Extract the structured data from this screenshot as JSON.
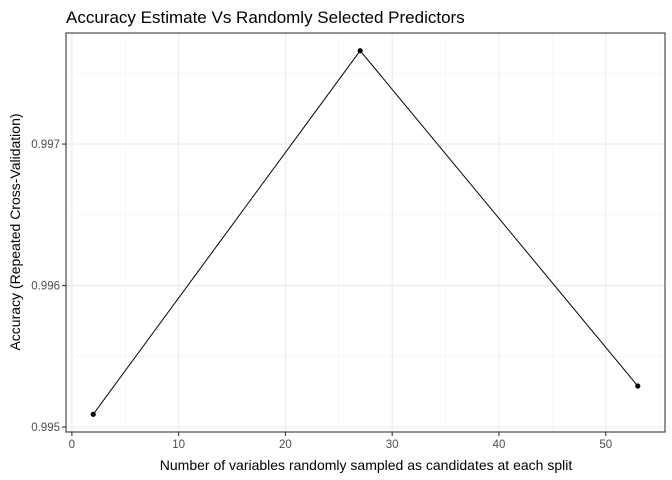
{
  "chart_data": {
    "type": "line",
    "title": "Accuracy Estimate Vs Randomly Selected Predictors",
    "xlabel": "Number of variables randomly sampled as candidates at each split",
    "ylabel": "Accuracy (Repeated Cross-Validation)",
    "x": [
      2,
      27,
      53
    ],
    "y": [
      0.99509,
      0.99766,
      0.99529
    ],
    "xlim": [
      -0.55,
      55.55
    ],
    "ylim": [
      0.994965,
      0.997785
    ],
    "x_ticks": [
      0,
      10,
      20,
      30,
      40,
      50
    ],
    "x_tick_labels": [
      "0",
      "10",
      "20",
      "30",
      "40",
      "50"
    ],
    "y_ticks": [
      0.995,
      0.996,
      0.997
    ],
    "y_tick_labels": [
      "0.995",
      "0.996",
      "0.997"
    ],
    "grid": true,
    "legend": "none",
    "line_color": "#000000",
    "point_color": "#000000"
  }
}
